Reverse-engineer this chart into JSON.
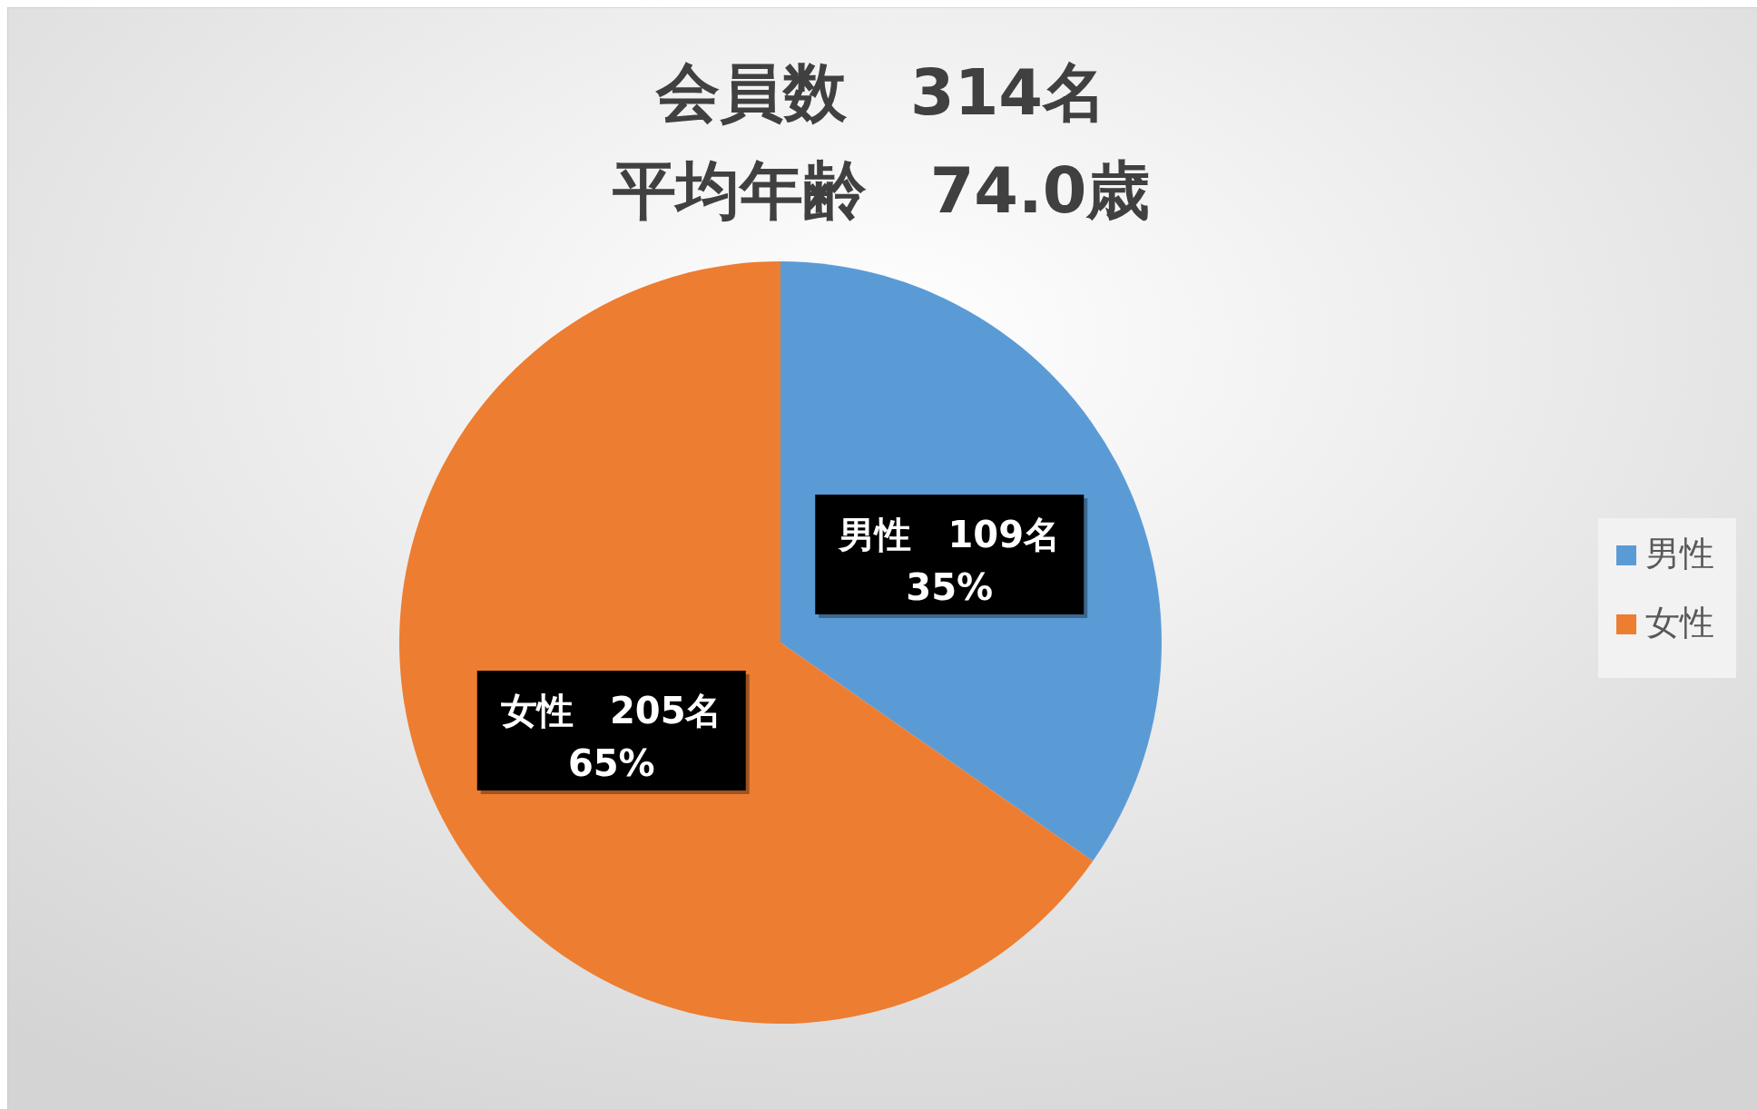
{
  "chart_data": {
    "type": "pie",
    "title": "会員数　314名",
    "subtitle": "平均年齢　74.0歳",
    "categories": [
      "男性",
      "女性"
    ],
    "values": [
      109,
      205
    ],
    "colors": [
      "#5b9bd5",
      "#ed7d31"
    ],
    "value_labels": [
      "男性　109名\n35%",
      "女性　205名\n65%"
    ],
    "legend": "right"
  }
}
